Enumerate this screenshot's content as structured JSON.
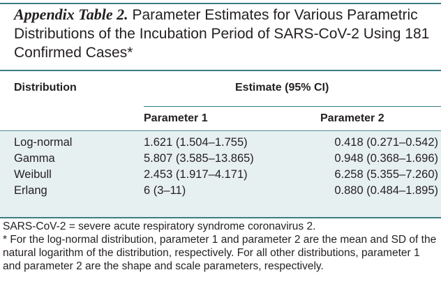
{
  "title": {
    "label": "Appendix Table 2.",
    "text": "Parameter Estimates for Various Parametric Distributions of the Incubation Period of SARS-CoV-2 Using 181 Confirmed Cases*"
  },
  "header": {
    "distribution": "Distribution",
    "estimate": "Estimate (95% CI)",
    "param1": "Parameter 1",
    "param2": "Parameter 2"
  },
  "rows": [
    {
      "dist": "Log-normal",
      "p1": "1.621 (1.504–1.755)",
      "p2": "0.418 (0.271–0.542)"
    },
    {
      "dist": "Gamma",
      "p1": "5.807 (3.585–13.865)",
      "p2": "0.948 (0.368–1.696)"
    },
    {
      "dist": "Weibull",
      "p1": "2.453 (1.917–4.171)",
      "p2": "6.258 (5.355–7.260)"
    },
    {
      "dist": "Erlang",
      "p1": "6 (3–11)",
      "p2": "0.880 (0.484–1.895)"
    }
  ],
  "footnotes": [
    "SARS-CoV-2 = severe acute respiratory syndrome coronavirus 2.",
    "* For the log-normal distribution, parameter 1 and parameter 2 are the mean and SD of the natural logarithm of the distribution, respectively. For all other distributions, parameter 1 and parameter 2 are the shape and scale parameters, respectively."
  ]
}
